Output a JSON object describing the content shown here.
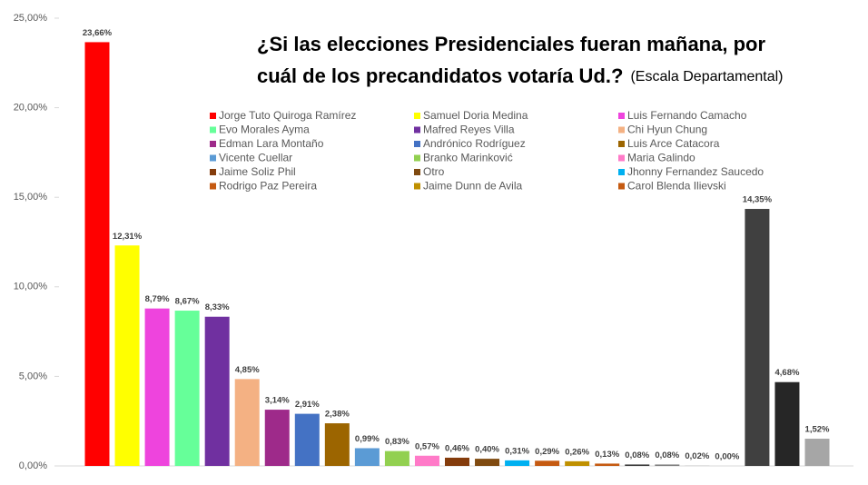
{
  "chart_data": {
    "type": "bar",
    "title_lines": [
      "¿Si las elecciones Presidenciales fueran mañana, por",
      "cuál de los precandidatos votaría Ud.?"
    ],
    "subtitle": "(Escala Departamental)",
    "categories": [
      "Jorge Tuto Quiroga Ramírez",
      "Samuel Doria Medina",
      "Luis Fernando Camacho",
      "Evo Morales Ayma",
      "Mafred Reyes Villa",
      "Chi Hyun Chung",
      "Edman Lara Montaño",
      "Andrónico Rodríguez",
      "Luis Arce Catacora",
      "Vicente Cuellar",
      "Branko Marinković",
      "Maria Galindo",
      "Jaime Soliz Phil",
      "Otro",
      "Jhonny Fernandez Saucedo",
      "Rodrigo Paz Pereira",
      "Jaime Dunn de Avila",
      "Carol Blenda Ilievski",
      null,
      null,
      null,
      null,
      null,
      null,
      null
    ],
    "values": [
      23.66,
      12.31,
      8.79,
      8.67,
      8.33,
      4.85,
      3.14,
      2.91,
      2.38,
      0.99,
      0.83,
      0.57,
      0.46,
      0.4,
      0.31,
      0.29,
      0.26,
      0.13,
      0.08,
      0.08,
      0.02,
      0.0,
      14.35,
      4.68,
      1.52
    ],
    "value_labels": [
      "23,66%",
      "12,31%",
      "8,79%",
      "8,67%",
      "8,33%",
      "4,85%",
      "3,14%",
      "2,91%",
      "2,38%",
      "0,99%",
      "0,83%",
      "0,57%",
      "0,46%",
      "0,40%",
      "0,31%",
      "0,29%",
      "0,26%",
      "0,13%",
      "0,08%",
      "0,08%",
      "0,02%",
      "0,00%",
      "14,35%",
      "4,68%",
      "1,52%"
    ],
    "colors": [
      "#ff0000",
      "#ffff00",
      "#ee44dd",
      "#66ff99",
      "#7030a0",
      "#f4b183",
      "#9e2a8a",
      "#4472c4",
      "#9c6500",
      "#5b9bd5",
      "#92d050",
      "#ff7ac8",
      "#843c0c",
      "#7f4a10",
      "#00b0f0",
      "#c55a11",
      "#bf9000",
      "#c55a11",
      "#3a3a3a",
      "#808080",
      "#bfbfbf",
      "#d9d9d9",
      "#404040",
      "#262626",
      "#a6a6a6"
    ],
    "ylim": [
      0,
      25
    ],
    "yticks": [
      {
        "value": 0,
        "label": "0,00%"
      },
      {
        "value": 5,
        "label": "5,00%"
      },
      {
        "value": 10,
        "label": "10,00%"
      },
      {
        "value": 15,
        "label": "15,00%"
      },
      {
        "value": 20,
        "label": "20,00%"
      },
      {
        "value": 25,
        "label": "25,00%"
      }
    ]
  }
}
